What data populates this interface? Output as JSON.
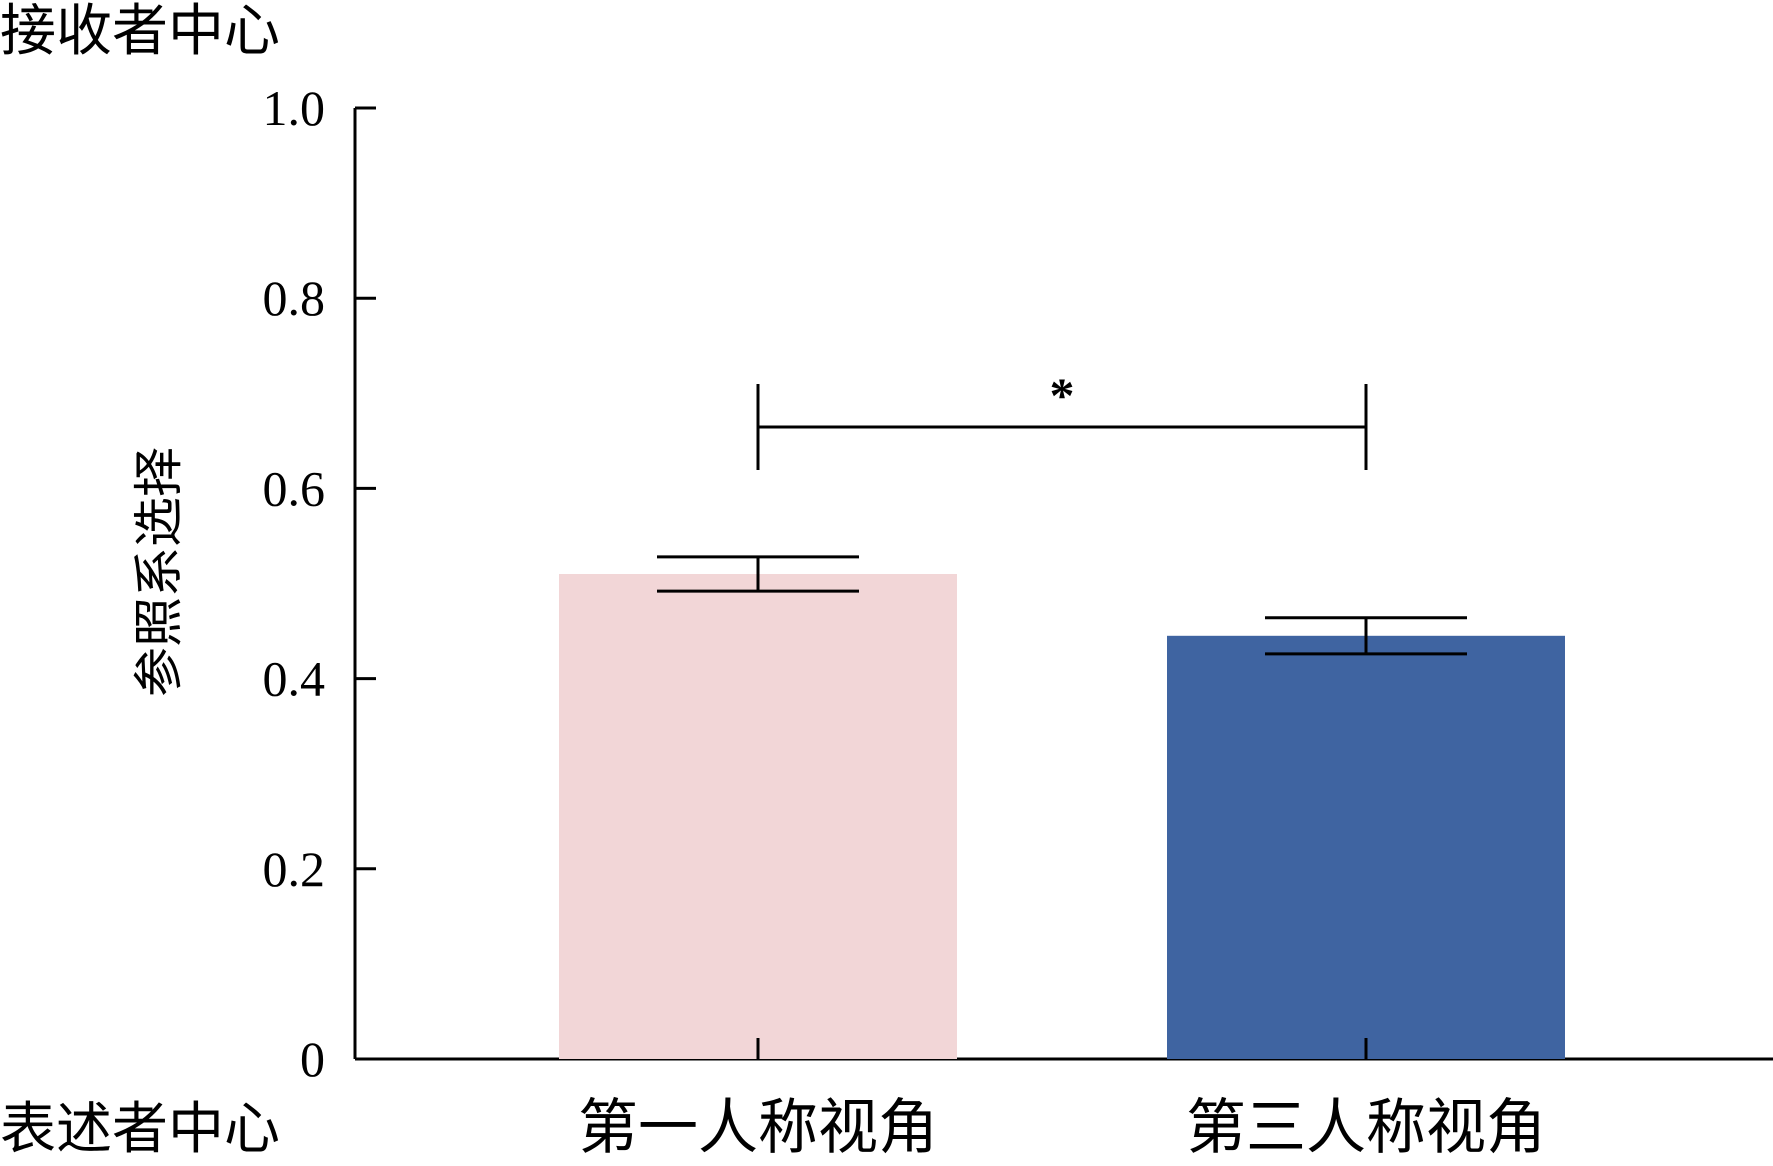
{
  "chart_data": {
    "type": "bar",
    "categories": [
      "第一人称视角",
      "第三人称视角"
    ],
    "values": [
      0.51,
      0.445
    ],
    "errors": [
      0.018,
      0.019
    ],
    "colors": [
      "#f2d6d7",
      "#3f64a1"
    ],
    "ylabel": "参照系选择",
    "ylim": [
      0,
      1.0
    ],
    "yticks": [
      0,
      0.2,
      0.4,
      0.6,
      0.8,
      1.0
    ],
    "ytick_labels": [
      "0",
      "0.2",
      "0.4",
      "0.6",
      "0.8",
      "1.0"
    ],
    "top_annotation": "接收者中心",
    "bottom_annotation": "表述者中心",
    "significance": {
      "between": [
        0,
        1
      ],
      "label": "*"
    },
    "grid": false,
    "legend": "none"
  }
}
